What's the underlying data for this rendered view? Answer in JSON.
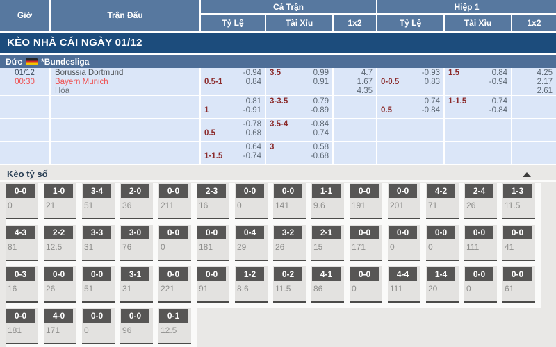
{
  "table_header": {
    "time": "Giờ",
    "match": "Trận Đấu",
    "full_time": "Cả Trận",
    "first_half": "Hiệp 1",
    "odds": "Tỷ Lệ",
    "over_under": "Tài Xỉu",
    "one_x_two": "1x2"
  },
  "day_title": "KÈO NHÀ CÁI NGÀY 01/12",
  "league_bar": {
    "country": "Đức",
    "league": "*Bundesliga",
    "flag": "germany-flag"
  },
  "match": {
    "date": "01/12",
    "time": "00:30",
    "home_team": "Borussia Dortmund",
    "away_team": "Bayern Munich",
    "draw_label": "Hòa"
  },
  "odds_rows": [
    {
      "ft_hdp": {
        "handicap": "0.5-1",
        "top": "-0.94",
        "bottom": "0.84"
      },
      "ft_ou": {
        "handicap": "3.5",
        "top": "0.99",
        "bottom": "0.91"
      },
      "ft_1x2": [
        "4.7",
        "1.67",
        "4.35"
      ],
      "h1_hdp": {
        "handicap": "0-0.5",
        "top": "-0.93",
        "bottom": "0.83"
      },
      "h1_ou": {
        "handicap": "1.5",
        "top": "0.84",
        "bottom": "-0.94"
      },
      "h1_1x2": [
        "4.25",
        "2.17",
        "2.61"
      ]
    },
    {
      "ft_hdp": {
        "handicap": "1",
        "top": "0.81",
        "bottom": "-0.91"
      },
      "ft_ou": {
        "handicap": "3-3.5",
        "top": "0.79",
        "bottom": "-0.89"
      },
      "ft_1x2": [],
      "h1_hdp": {
        "handicap": "0.5",
        "top": "0.74",
        "bottom": "-0.84"
      },
      "h1_ou": {
        "handicap": "1-1.5",
        "top": "0.74",
        "bottom": "-0.84"
      },
      "h1_1x2": []
    },
    {
      "ft_hdp": {
        "handicap": "0.5",
        "top": "-0.78",
        "bottom": "0.68"
      },
      "ft_ou": {
        "handicap": "3.5-4",
        "top": "-0.84",
        "bottom": "0.74"
      },
      "ft_1x2": [],
      "h1_hdp": null,
      "h1_ou": null,
      "h1_1x2": []
    },
    {
      "ft_hdp": {
        "handicap": "1-1.5",
        "top": "0.64",
        "bottom": "-0.74"
      },
      "ft_ou": {
        "handicap": "3",
        "top": "0.58",
        "bottom": "-0.68"
      },
      "ft_1x2": [],
      "h1_hdp": null,
      "h1_ou": null,
      "h1_1x2": []
    }
  ],
  "score_section": {
    "title": "Kèo tỷ số",
    "collapse_icon": "triangle-up-icon",
    "rows": [
      [
        {
          "score": "0-0",
          "odds": "0"
        },
        {
          "score": "1-0",
          "odds": "21"
        },
        {
          "score": "3-4",
          "odds": "51"
        },
        {
          "score": "2-0",
          "odds": "36"
        },
        {
          "score": "0-0",
          "odds": "211"
        },
        {
          "score": "2-3",
          "odds": "16"
        },
        {
          "score": "0-0",
          "odds": "0"
        },
        {
          "score": "0-0",
          "odds": "141"
        },
        {
          "score": "1-1",
          "odds": "9.6"
        },
        {
          "score": "0-0",
          "odds": "191"
        },
        {
          "score": "0-0",
          "odds": "201"
        },
        {
          "score": "4-2",
          "odds": "71"
        },
        {
          "score": "2-4",
          "odds": "26"
        },
        {
          "score": "1-3",
          "odds": "11.5"
        }
      ],
      [
        {
          "score": "4-3",
          "odds": "81"
        },
        {
          "score": "2-2",
          "odds": "12.5"
        },
        {
          "score": "3-3",
          "odds": "31"
        },
        {
          "score": "3-0",
          "odds": "76"
        },
        {
          "score": "0-0",
          "odds": "0"
        },
        {
          "score": "0-0",
          "odds": "181"
        },
        {
          "score": "0-4",
          "odds": "29"
        },
        {
          "score": "3-2",
          "odds": "26"
        },
        {
          "score": "2-1",
          "odds": "15"
        },
        {
          "score": "0-0",
          "odds": "171"
        },
        {
          "score": "0-0",
          "odds": "0"
        },
        {
          "score": "0-0",
          "odds": "0"
        },
        {
          "score": "0-0",
          "odds": "111"
        },
        {
          "score": "0-0",
          "odds": "41"
        }
      ],
      [
        {
          "score": "0-3",
          "odds": "16"
        },
        {
          "score": "0-0",
          "odds": "26"
        },
        {
          "score": "0-0",
          "odds": "51"
        },
        {
          "score": "3-1",
          "odds": "31"
        },
        {
          "score": "0-0",
          "odds": "221"
        },
        {
          "score": "0-0",
          "odds": "91"
        },
        {
          "score": "1-2",
          "odds": "8.6"
        },
        {
          "score": "0-2",
          "odds": "11.5"
        },
        {
          "score": "4-1",
          "odds": "86"
        },
        {
          "score": "0-0",
          "odds": "0"
        },
        {
          "score": "4-4",
          "odds": "111"
        },
        {
          "score": "1-4",
          "odds": "20"
        },
        {
          "score": "0-0",
          "odds": "0"
        },
        {
          "score": "0-0",
          "odds": "61"
        }
      ],
      [
        {
          "score": "0-0",
          "odds": "181"
        },
        {
          "score": "4-0",
          "odds": "171"
        },
        {
          "score": "0-0",
          "odds": "0"
        },
        {
          "score": "0-0",
          "odds": "96"
        },
        {
          "score": "0-1",
          "odds": "12.5"
        }
      ]
    ]
  },
  "colors": {
    "header_blue": "#57789f",
    "title_navy": "#1c4c7c",
    "league_blue": "#4e6e97",
    "row_blue": "#dbe6f8",
    "handicap_maroon": "#8b2a2a",
    "accent_red": "#ef5050",
    "score_box_grey": "#575655"
  }
}
